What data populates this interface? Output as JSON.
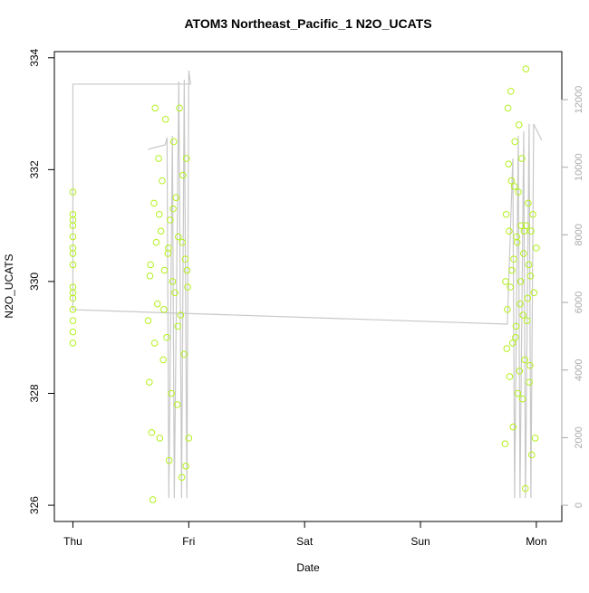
{
  "chart_data": {
    "type": "scatter",
    "title": "ATOM3 Northeast_Pacific_1 N2O_UCATS",
    "xlabel": "Date",
    "ylabel": "N2O_UCATS",
    "color": "#b4f01e",
    "x": [
      0,
      0,
      0,
      0,
      0,
      0,
      0,
      0,
      0,
      0,
      0,
      0,
      0,
      0,
      0,
      0.65,
      0.66,
      0.67,
      0.68,
      0.69,
      0.7,
      0.71,
      0.72,
      0.73,
      0.74,
      0.75,
      0.76,
      0.77,
      0.78,
      0.79,
      0.8,
      0.81,
      0.82,
      0.83,
      0.84,
      0.85,
      0.86,
      0.87,
      0.88,
      0.89,
      0.9,
      0.91,
      0.92,
      0.93,
      0.94,
      0.95,
      0.96,
      0.97,
      0.98,
      0.99,
      1.0,
      0.665,
      0.705,
      0.745,
      0.785,
      0.825,
      0.865,
      0.905,
      0.945,
      0.985,
      0.975,
      3.73,
      3.74,
      3.75,
      3.76,
      3.77,
      3.78,
      3.79,
      3.8,
      3.81,
      3.82,
      3.83,
      3.84,
      3.85,
      3.86,
      3.87,
      3.88,
      3.89,
      3.9,
      3.91,
      3.92,
      3.93,
      3.94,
      3.95,
      3.96,
      3.97,
      3.98,
      3.99,
      4.0,
      3.735,
      3.745,
      3.755,
      3.765,
      3.775,
      3.785,
      3.795,
      3.805,
      3.815,
      3.825,
      3.835,
      3.845,
      3.855,
      3.865,
      3.875,
      3.885,
      3.895,
      3.905,
      3.915,
      3.925,
      3.935,
      3.945,
      3.955
    ],
    "values": [
      331.6,
      331.2,
      331.1,
      331.0,
      330.8,
      330.6,
      330.5,
      330.3,
      329.9,
      329.8,
      329.7,
      329.5,
      329.3,
      329.1,
      328.9,
      329.3,
      328.2,
      330.3,
      327.3,
      326.1,
      331.4,
      333.1,
      330.7,
      329.6,
      332.2,
      327.2,
      330.9,
      331.8,
      328.6,
      330.2,
      332.9,
      329.0,
      330.5,
      326.8,
      331.1,
      328.0,
      330.0,
      332.5,
      329.8,
      331.5,
      327.8,
      330.8,
      333.1,
      329.4,
      326.5,
      331.9,
      328.7,
      330.4,
      332.2,
      329.9,
      327.2,
      330.1,
      328.9,
      331.2,
      329.5,
      330.6,
      331.3,
      329.2,
      330.7,
      330.2,
      326.7,
      327.1,
      331.2,
      329.5,
      332.1,
      328.3,
      333.4,
      330.2,
      327.4,
      331.7,
      329.0,
      330.8,
      328.0,
      332.8,
      329.6,
      331.0,
      327.9,
      330.5,
      328.6,
      333.8,
      329.3,
      331.4,
      328.2,
      330.1,
      326.9,
      331.2,
      329.8,
      327.2,
      330.6,
      330.0,
      328.8,
      333.1,
      330.9,
      329.9,
      331.8,
      328.9,
      330.4,
      332.5,
      329.2,
      330.7,
      331.6,
      328.4,
      330.0,
      332.2,
      329.4,
      330.9,
      326.3,
      331.0,
      329.7,
      330.3,
      328.5,
      330.9
    ],
    "xlim": [
      -0.16,
      4.22
    ],
    "ylim": [
      325.71,
      334.11
    ],
    "y2lim": [
      -480,
      13420
    ],
    "xticks": [
      {
        "value": 0,
        "label": "Thu"
      },
      {
        "value": 1,
        "label": "Fri"
      },
      {
        "value": 2,
        "label": "Sat"
      },
      {
        "value": 3,
        "label": "Sun"
      },
      {
        "value": 4,
        "label": "Mon"
      }
    ],
    "yticks": [
      326,
      328,
      330,
      332,
      334
    ],
    "y2ticks": [
      0,
      2000,
      4000,
      6000,
      8000,
      10000,
      12000
    ],
    "overlay": {
      "type": "line",
      "axis": "y2",
      "color": "#c8c8c8",
      "x": [
        0.648,
        0.797,
        0.8125,
        0.828,
        0.859,
        0.875,
        0.914,
        0.938,
        0.961,
        0.984,
        1.0,
        1.016,
        0,
        0,
        3.75,
        3.797,
        3.8125,
        3.844,
        3.859,
        3.891,
        3.906,
        3.9375,
        3.953,
        3.977,
        4.047
      ],
      "values": [
        10528,
        10662,
        10876,
        214,
        10930,
        214,
        12537,
        214,
        12590,
        214,
        12859,
        12457,
        12457,
        5786,
        5358,
        10260,
        214,
        10930,
        214,
        11064,
        214,
        11278,
        214,
        11278,
        10796
      ]
    }
  }
}
